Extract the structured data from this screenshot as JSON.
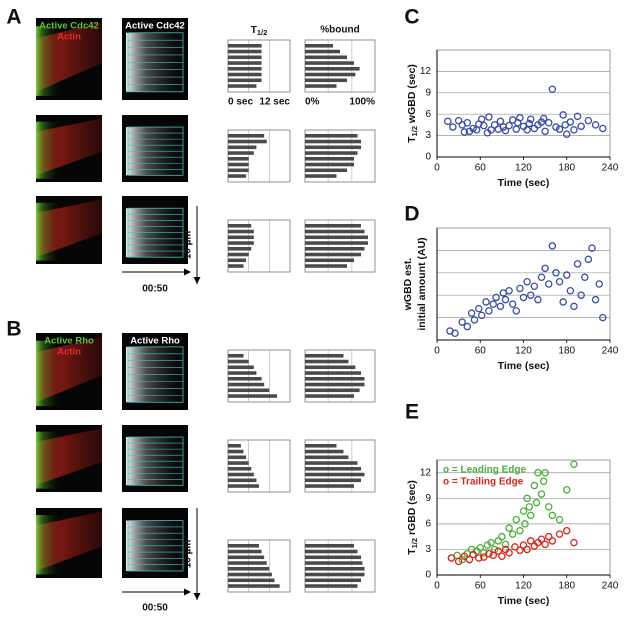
{
  "kymographs": {
    "t_header": [
      "T",
      "1/2"
    ],
    "bound_header": "%bound",
    "t_xlim": [
      0,
      12
    ],
    "bound_xlim": [
      0,
      100
    ],
    "t_grid": [
      4,
      8
    ],
    "bound_grid": [
      33,
      67
    ],
    "t_ticks": [
      {
        "value": 0,
        "label": "0 sec"
      },
      {
        "value": 12,
        "label": "12 sec"
      }
    ],
    "bound_ticks": [
      {
        "value": 0,
        "label": "0%"
      },
      {
        "value": 100,
        "label": "100%"
      }
    ],
    "time_label": "00:50",
    "scale_label": "10 µm",
    "panels": [
      {
        "label": "A",
        "channel_labels": [
          "Active Cdc42",
          "Actin"
        ],
        "kymo_label": "Active Cdc42",
        "rows": [
          {
            "t": [
              6.5,
              6.5,
              6.5,
              6.5,
              6.5,
              6.5,
              6.5,
              5.5
            ],
            "bound": [
              40,
              50,
              60,
              70,
              78,
              72,
              60,
              45
            ]
          },
          {
            "t": [
              7,
              7.5,
              5.5,
              5,
              4,
              4,
              4,
              3.5
            ],
            "bound": [
              75,
              80,
              80,
              75,
              70,
              70,
              60,
              45
            ]
          },
          {
            "t": [
              4.5,
              5,
              5,
              5,
              4.5,
              4,
              3.5,
              3
            ],
            "bound": [
              80,
              85,
              90,
              90,
              85,
              80,
              70,
              60
            ]
          }
        ]
      },
      {
        "label": "B",
        "channel_labels": [
          "Active Rho",
          "Actin"
        ],
        "kymo_label": "Active Rho",
        "rows": [
          {
            "t": [
              3,
              4,
              5,
              5.5,
              6.5,
              7,
              8,
              9.5
            ],
            "bound": [
              55,
              62,
              72,
              80,
              85,
              85,
              78,
              70
            ]
          },
          {
            "t": [
              2.5,
              3,
              3.5,
              4,
              4.5,
              5,
              5.5,
              6
            ],
            "bound": [
              45,
              55,
              62,
              75,
              80,
              85,
              80,
              70
            ]
          },
          {
            "t": [
              6,
              6.5,
              7,
              7.5,
              8,
              8.5,
              9,
              10
            ],
            "bound": [
              70,
              75,
              80,
              82,
              85,
              85,
              80,
              75
            ]
          }
        ]
      }
    ]
  },
  "chart_data": [
    {
      "type": "scatter",
      "label": "C",
      "ylabel_parts": [
        "T",
        "1/2",
        " wGBD (sec)"
      ],
      "xlabel": "Time (sec)",
      "xlim": [
        0,
        240
      ],
      "xticks": [
        0,
        60,
        120,
        180,
        240
      ],
      "ylim": [
        0,
        15
      ],
      "yticks": [
        0,
        3,
        6,
        9,
        12
      ],
      "grid": true,
      "series": [
        {
          "color": "#3a4ea6",
          "x": [
            15,
            22,
            30,
            35,
            38,
            42,
            45,
            50,
            55,
            58,
            62,
            65,
            70,
            72,
            75,
            80,
            85,
            88,
            92,
            95,
            100,
            105,
            110,
            112,
            115,
            120,
            125,
            128,
            130,
            135,
            140,
            145,
            148,
            150,
            155,
            160,
            165,
            170,
            175,
            178,
            180,
            185,
            190,
            195,
            200,
            210,
            220,
            230
          ],
          "values": [
            5,
            4.2,
            5.1,
            4.5,
            3.5,
            4.8,
            3.6,
            4,
            3.8,
            4.6,
            5.3,
            4.4,
            3.4,
            5.6,
            3.8,
            4.5,
            3.9,
            5,
            4.2,
            3.7,
            4.4,
            5.2,
            3.9,
            4.8,
            5.5,
            4.3,
            3.8,
            4.7,
            5.3,
            4,
            4.5,
            4.9,
            5.4,
            3.6,
            4.8,
            9.5,
            4.2,
            3.9,
            5.9,
            4.5,
            3.2,
            4.9,
            3.8,
            5.7,
            4.3,
            5.1,
            4.5,
            4
          ]
        }
      ]
    },
    {
      "type": "scatter",
      "label": "D",
      "ylabel_lines": [
        "wGBD est.",
        "initial amount (AU)"
      ],
      "xlabel": "Time (sec)",
      "xlim": [
        0,
        240
      ],
      "xticks": [
        0,
        60,
        120,
        180,
        240
      ],
      "ylim": [
        0,
        5
      ],
      "grid_y": [
        1,
        2,
        3,
        4
      ],
      "grid": true,
      "series": [
        {
          "color": "#3a4ea6",
          "x": [
            18,
            25,
            35,
            42,
            48,
            52,
            58,
            62,
            68,
            72,
            78,
            82,
            88,
            92,
            95,
            100,
            105,
            110,
            115,
            120,
            125,
            130,
            135,
            140,
            145,
            150,
            155,
            160,
            165,
            170,
            175,
            180,
            185,
            190,
            195,
            200,
            205,
            210,
            215,
            220,
            225,
            230
          ],
          "values": [
            0.4,
            0.3,
            0.8,
            0.6,
            1.2,
            0.9,
            1.4,
            1.1,
            1.7,
            1.3,
            1.6,
            1.9,
            1.5,
            2.1,
            1.8,
            2.2,
            1.6,
            1.3,
            2.3,
            1.9,
            2.6,
            2.0,
            2.4,
            1.8,
            2.8,
            3.2,
            2.5,
            4.2,
            3.0,
            2.6,
            1.7,
            2.9,
            2.2,
            1.5,
            3.4,
            2.0,
            2.8,
            3.6,
            4.1,
            1.8,
            2.5,
            1.0
          ]
        }
      ]
    },
    {
      "type": "scatter",
      "label": "E",
      "ylabel_parts": [
        "T",
        "1/2",
        " rGBD (sec)"
      ],
      "xlabel": "Time (sec)",
      "xlim": [
        0,
        240
      ],
      "xticks": [
        0,
        60,
        120,
        180,
        240
      ],
      "ylim": [
        0,
        13.5
      ],
      "yticks": [
        0,
        3,
        6,
        9,
        12
      ],
      "grid": true,
      "legend": "top-left",
      "series": [
        {
          "name": "o = Leading Edge",
          "color": "#4cae3c",
          "x": [
            20,
            28,
            35,
            42,
            48,
            55,
            60,
            65,
            70,
            75,
            80,
            85,
            90,
            95,
            100,
            105,
            110,
            115,
            120,
            122,
            125,
            128,
            130,
            135,
            138,
            140,
            145,
            148,
            150,
            155,
            160,
            170,
            180,
            190
          ],
          "values": [
            2,
            2.3,
            1.8,
            2.5,
            3,
            2.8,
            3.2,
            2.6,
            3.5,
            3.8,
            3,
            4,
            4.5,
            3.6,
            5.5,
            4.8,
            6.5,
            5.2,
            7.5,
            6,
            9,
            8,
            7,
            10.5,
            8.5,
            12,
            9.5,
            11,
            12,
            8,
            7,
            6.5,
            10,
            13
          ]
        },
        {
          "name": "o = Trailing Edge",
          "color": "#d8261c",
          "x": [
            20,
            30,
            38,
            45,
            50,
            58,
            65,
            72,
            78,
            85,
            90,
            95,
            100,
            108,
            115,
            120,
            125,
            130,
            135,
            140,
            145,
            150,
            155,
            160,
            170,
            180,
            190
          ],
          "values": [
            2,
            1.6,
            2.2,
            1.8,
            2.4,
            2,
            2.1,
            2.5,
            2.3,
            2.8,
            2.2,
            3,
            2.6,
            3.3,
            2.9,
            3.5,
            3,
            4,
            3.4,
            3.8,
            4.2,
            3.6,
            4.5,
            4,
            4.8,
            5.2,
            3.8
          ]
        }
      ]
    }
  ]
}
